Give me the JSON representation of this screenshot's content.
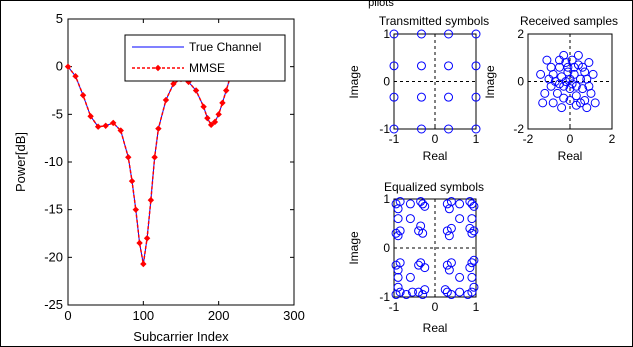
{
  "figure_title": "pilots",
  "colors": {
    "true_channel": "#0000ff",
    "mmse": "#ff0000",
    "symbols": "#0000ff"
  },
  "chart_data": [
    {
      "type": "line",
      "xlabel": "Subcarrier Index",
      "ylabel": "Power[dB]",
      "xlim": [
        0,
        300
      ],
      "ylim": [
        -25,
        5
      ],
      "xticks": [
        0,
        100,
        200,
        300
      ],
      "yticks": [
        5,
        0,
        -5,
        -10,
        -15,
        -20,
        -25
      ],
      "legend_position": "top-right",
      "series": [
        {
          "name": "True Channel",
          "x": [
            0,
            10,
            20,
            30,
            40,
            50,
            60,
            70,
            80,
            85,
            90,
            95,
            100,
            105,
            110,
            115,
            120,
            130,
            140,
            150,
            160,
            170,
            180,
            185,
            190,
            195,
            200,
            205,
            210,
            215,
            220
          ],
          "y": [
            0,
            -1,
            -3,
            -5.2,
            -6.3,
            -6.2,
            -5.9,
            -6.7,
            -9.5,
            -12,
            -15,
            -18.5,
            -20.7,
            -18,
            -14,
            -9.5,
            -6.5,
            -3.5,
            -1.8,
            -1.3,
            -1.6,
            -2.5,
            -4.2,
            -5.4,
            -6.1,
            -5.8,
            -5,
            -3.8,
            -2.5,
            -1.2,
            0
          ]
        },
        {
          "name": "MMSE",
          "x": [
            0,
            10,
            20,
            30,
            40,
            50,
            60,
            70,
            80,
            85,
            90,
            95,
            100,
            105,
            110,
            115,
            120,
            130,
            140,
            150,
            160,
            170,
            180,
            185,
            190,
            195,
            200,
            205,
            210,
            215,
            220
          ],
          "y": [
            0,
            -1,
            -3,
            -5.2,
            -6.3,
            -6.2,
            -5.9,
            -6.7,
            -9.5,
            -12,
            -15,
            -18.5,
            -20.7,
            -18,
            -14,
            -9.5,
            -6.5,
            -3.5,
            -1.8,
            -1.3,
            -1.6,
            -2.5,
            -4.2,
            -5.4,
            -6.1,
            -5.8,
            -5,
            -3.8,
            -2.5,
            -1.2,
            0
          ]
        }
      ]
    },
    {
      "type": "scatter",
      "title": "Transmitted symbols",
      "xlabel": "Real",
      "ylabel": "Image",
      "xlim": [
        -1,
        1
      ],
      "ylim": [
        -1,
        1
      ],
      "xticks": [
        -1,
        0,
        1
      ],
      "yticks": [
        1,
        0,
        -1
      ],
      "points": [
        [
          -1,
          -1
        ],
        [
          -1,
          -0.33
        ],
        [
          -1,
          0.33
        ],
        [
          -1,
          1
        ],
        [
          -0.33,
          -1
        ],
        [
          -0.33,
          -0.33
        ],
        [
          -0.33,
          0.33
        ],
        [
          -0.33,
          1
        ],
        [
          0.33,
          -1
        ],
        [
          0.33,
          -0.33
        ],
        [
          0.33,
          0.33
        ],
        [
          0.33,
          1
        ],
        [
          1,
          -1
        ],
        [
          1,
          -0.33
        ],
        [
          1,
          0.33
        ],
        [
          1,
          1
        ]
      ]
    },
    {
      "type": "scatter",
      "title": "Received samples",
      "xlabel": "Real",
      "ylabel": "Image",
      "xlim": [
        -2,
        2
      ],
      "ylim": [
        -2,
        2
      ],
      "xticks": [
        -2,
        0,
        2
      ],
      "yticks": [
        2,
        0,
        -2
      ],
      "points": [
        [
          -0.8,
          0.3
        ],
        [
          -0.5,
          0.6
        ],
        [
          -0.2,
          0.8
        ],
        [
          0.1,
          0.9
        ],
        [
          0.4,
          0.7
        ],
        [
          0.7,
          0.4
        ],
        [
          0.8,
          0.1
        ],
        [
          0.6,
          -0.3
        ],
        [
          0.3,
          -0.6
        ],
        [
          0,
          -0.8
        ],
        [
          -0.3,
          -0.7
        ],
        [
          -0.6,
          -0.5
        ],
        [
          -0.9,
          -0.2
        ],
        [
          -1.0,
          0.1
        ],
        [
          -0.7,
          0
        ],
        [
          -0.4,
          0.2
        ],
        [
          -0.1,
          0.4
        ],
        [
          0.2,
          0.3
        ],
        [
          0.5,
          0.1
        ],
        [
          0.3,
          -0.2
        ],
        [
          0,
          -0.3
        ],
        [
          -0.3,
          -0.2
        ],
        [
          -0.5,
          -0.1
        ],
        [
          -0.2,
          0
        ],
        [
          0.1,
          -0.1
        ],
        [
          0.2,
          0.6
        ],
        [
          -0.1,
          0.6
        ],
        [
          0.6,
          0.6
        ],
        [
          0.9,
          -0.2
        ],
        [
          -0.9,
          0.6
        ],
        [
          -1.2,
          -0.5
        ],
        [
          -0.8,
          -0.9
        ],
        [
          -0.4,
          -1.1
        ],
        [
          0.3,
          -1.0
        ],
        [
          0.7,
          -0.8
        ],
        [
          1.0,
          -0.5
        ],
        [
          1.1,
          0.3
        ],
        [
          0.9,
          0.8
        ],
        [
          -0.3,
          1.1
        ],
        [
          0.4,
          1.1
        ],
        [
          -1.3,
          -0.9
        ],
        [
          -1.1,
          0.9
        ],
        [
          0.8,
          -1.1
        ],
        [
          0.0,
          0.1
        ],
        [
          -0.5,
          0.9
        ],
        [
          0.5,
          -0.9
        ],
        [
          1.2,
          -0.9
        ],
        [
          -1.4,
          0.3
        ]
      ]
    },
    {
      "type": "scatter",
      "title": "Equalized symbols",
      "xlabel": "Real",
      "ylabel": "Image",
      "xlim": [
        -1,
        1
      ],
      "ylim": [
        -1,
        1
      ],
      "xticks": [
        -1,
        0,
        1
      ],
      "yticks": [
        1,
        0,
        -1
      ],
      "points": [
        [
          -0.95,
          -0.95
        ],
        [
          -0.85,
          -0.9
        ],
        [
          -0.7,
          -0.95
        ],
        [
          -0.9,
          -0.8
        ],
        [
          -0.3,
          -0.95
        ],
        [
          -0.4,
          -0.9
        ],
        [
          -0.25,
          -0.85
        ],
        [
          0.3,
          -0.9
        ],
        [
          0.4,
          -0.95
        ],
        [
          0.25,
          -0.85
        ],
        [
          0.9,
          -0.9
        ],
        [
          0.95,
          -0.8
        ],
        [
          0.8,
          -0.95
        ],
        [
          -0.95,
          -0.35
        ],
        [
          -0.85,
          -0.3
        ],
        [
          -0.9,
          -0.45
        ],
        [
          -0.35,
          -0.3
        ],
        [
          -0.25,
          -0.4
        ],
        [
          -0.4,
          -0.35
        ],
        [
          0.3,
          -0.35
        ],
        [
          0.4,
          -0.3
        ],
        [
          0.35,
          -0.45
        ],
        [
          0.9,
          -0.3
        ],
        [
          0.85,
          -0.4
        ],
        [
          0.95,
          -0.25
        ],
        [
          -0.95,
          0.3
        ],
        [
          -0.85,
          0.35
        ],
        [
          -0.9,
          0.25
        ],
        [
          -0.3,
          0.3
        ],
        [
          -0.4,
          0.35
        ],
        [
          -0.35,
          0.45
        ],
        [
          0.3,
          0.35
        ],
        [
          0.35,
          0.25
        ],
        [
          0.4,
          0.4
        ],
        [
          0.9,
          0.3
        ],
        [
          0.85,
          0.4
        ],
        [
          0.95,
          0.35
        ],
        [
          -0.95,
          0.9
        ],
        [
          -0.85,
          0.95
        ],
        [
          -0.9,
          0.8
        ],
        [
          -0.3,
          0.9
        ],
        [
          -0.35,
          0.95
        ],
        [
          -0.25,
          0.85
        ],
        [
          0.3,
          0.9
        ],
        [
          0.4,
          0.95
        ],
        [
          0.35,
          0.8
        ],
        [
          0.9,
          0.9
        ],
        [
          0.85,
          0.95
        ],
        [
          0.95,
          0.85
        ],
        [
          -0.6,
          -0.6
        ],
        [
          0.6,
          0.6
        ],
        [
          -0.6,
          0.6
        ],
        [
          0.6,
          -0.6
        ],
        [
          -0.55,
          -0.9
        ],
        [
          0.6,
          -0.9
        ],
        [
          -0.6,
          0.9
        ],
        [
          0.6,
          0.9
        ],
        [
          -0.9,
          -0.6
        ],
        [
          0.9,
          0.6
        ],
        [
          -0.9,
          0.6
        ],
        [
          0.9,
          -0.6
        ]
      ]
    }
  ]
}
